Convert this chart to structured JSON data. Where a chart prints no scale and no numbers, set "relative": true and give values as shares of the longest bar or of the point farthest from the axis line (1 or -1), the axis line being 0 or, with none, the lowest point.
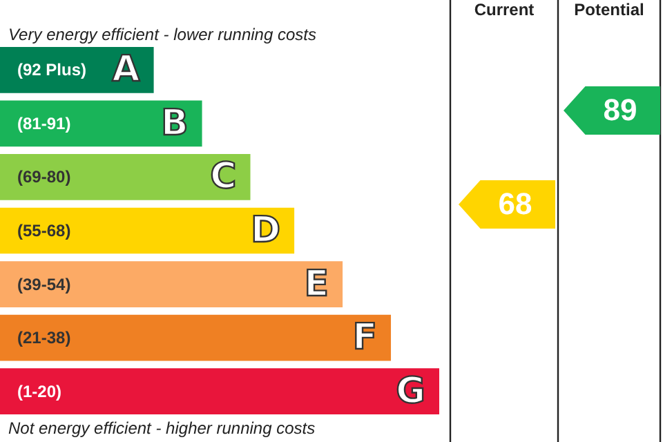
{
  "chart_data": {
    "type": "bar",
    "orientation": "horizontal",
    "relative": true,
    "title": "Very energy efficient - lower running costs",
    "categories": [
      "(92 Plus)",
      "(81-91)",
      "(69-80)",
      "(55-68)",
      "(39-54)",
      "(21-38)",
      "(1-20)"
    ],
    "values": [
      0.35,
      0.46,
      0.57,
      0.67,
      0.78,
      0.89,
      1
    ],
    "colors": [
      "#008054",
      "#19b459",
      "#8dce46",
      "#ffd500",
      "#fcaa65",
      "#ef8023",
      "#e9153b"
    ],
    "annotations": [
      "Not energy efficient - higher running costs",
      "Current",
      "Potential",
      {
        "text": "A",
        "x": 0.35,
        "y": "(92 Plus)"
      },
      {
        "text": "B",
        "x": 0.46,
        "y": "(81-91)"
      },
      {
        "text": "C",
        "x": 0.57,
        "y": "(69-80)"
      },
      {
        "text": "D",
        "x": 0.67,
        "y": "(55-68)"
      },
      {
        "text": "E",
        "x": 0.78,
        "y": "(39-54)"
      },
      {
        "text": "F",
        "x": 0.89,
        "y": "(21-38)"
      },
      {
        "text": "G",
        "x": 1,
        "y": "(1-20)"
      },
      "68",
      "89"
    ]
  }
}
